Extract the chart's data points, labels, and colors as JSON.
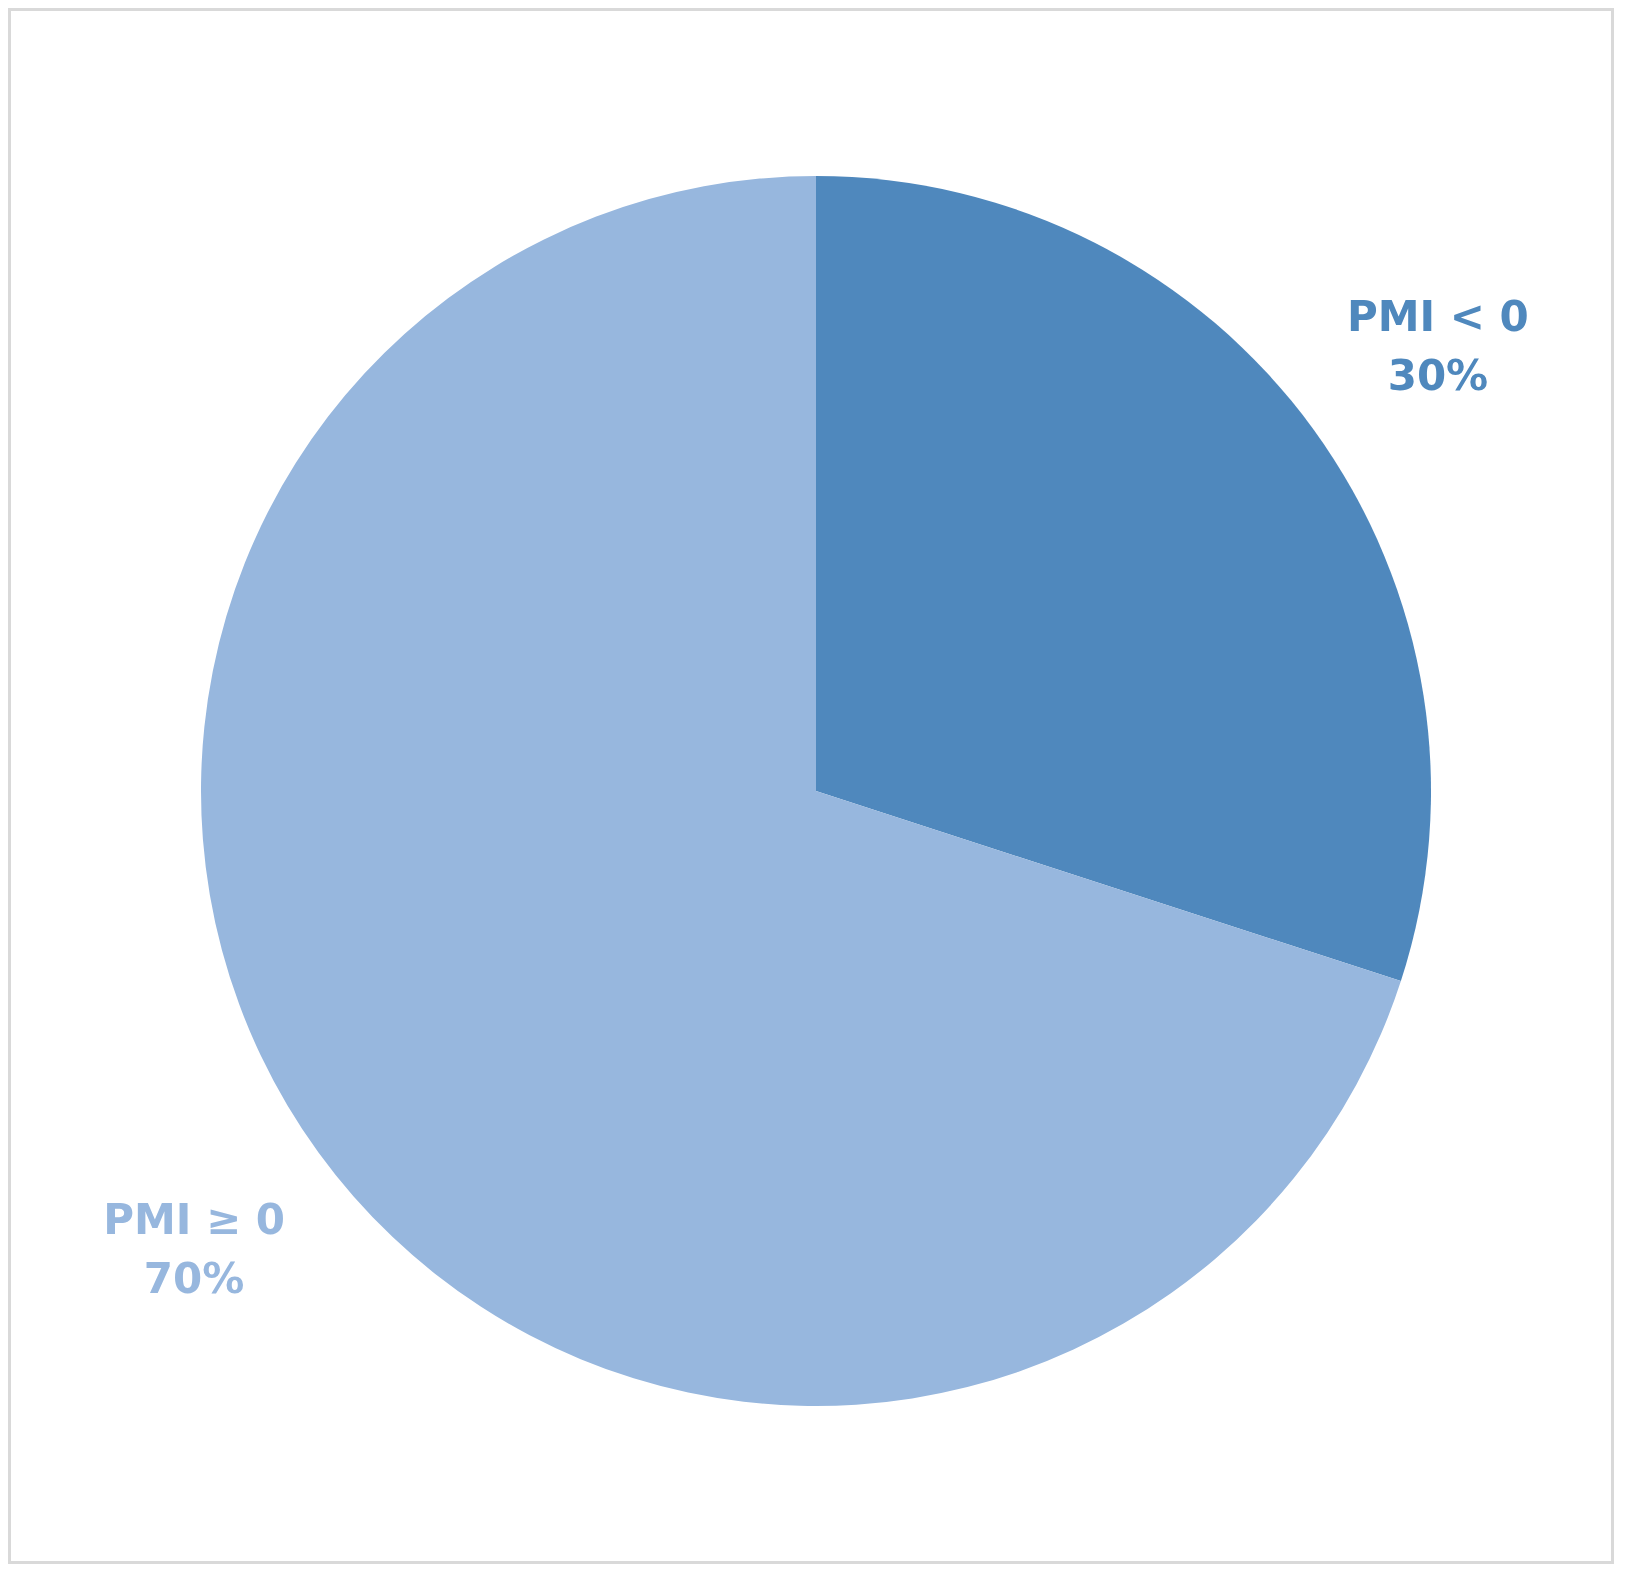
{
  "chart_data": {
    "type": "pie",
    "categories": [
      "PMI < 0",
      "PMI ≥ 0"
    ],
    "values": [
      30,
      70
    ],
    "value_labels": [
      "30%",
      "70%"
    ],
    "colors": [
      "#4f88bd",
      "#97b7de"
    ]
  }
}
